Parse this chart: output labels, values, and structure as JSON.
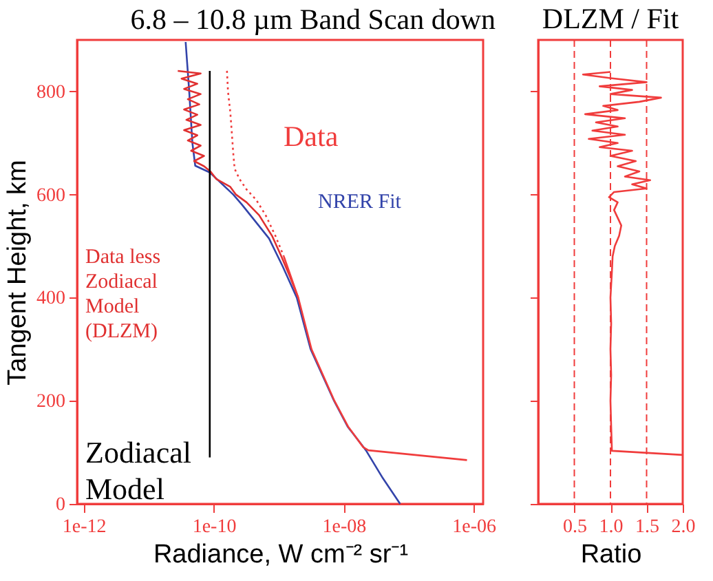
{
  "chart_data": [
    {
      "type": "line",
      "title": "6.8 – 10.8 µm Band  Scan down",
      "xlabel": "Radiance, W cm⁻² sr⁻¹",
      "ylabel": "Tangent Height, km",
      "log": "x",
      "xlim": [
        7.9e-13,
        1.4e-06
      ],
      "xticks": [
        {
          "value": 1e-12,
          "label": "1e-12"
        },
        {
          "value": 1e-10,
          "label": "1e-10"
        },
        {
          "value": 1e-08,
          "label": "1e-08"
        },
        {
          "value": 1e-06,
          "label": "1e-06"
        }
      ],
      "ylim": [
        0,
        900
      ],
      "yticks": [
        0,
        200,
        400,
        600,
        800
      ],
      "series": [
        {
          "color": "#f03c3c",
          "line_style": "dotted",
          "x": [
            1.6e-10,
            1.66e-10,
            1.8e-10,
            1.9e-10,
            2e-10,
            2.1e-10,
            2.5e-10,
            3.2e-10,
            4.5e-10,
            6.3e-10,
            8.9e-10,
            1.2e-09
          ],
          "values": [
            840,
            800,
            760,
            720,
            680,
            650,
            630,
            610,
            590,
            560,
            520,
            480
          ]
        },
        {
          "color": "#3344aa",
          "x": [
            3.7e-11,
            4.2e-11,
            4.7e-11,
            5.2e-11,
            8.7e-11,
            2e-10,
            2.7e-10,
            7.1e-10,
            1.15e-09,
            1.9e-09,
            3.1e-09,
            7.1e-09,
            1.15e-08,
            2.2e-08,
            4e-08,
            7.4e-08
          ],
          "values": [
            896,
            800,
            700,
            656,
            643,
            600,
            581,
            515,
            461,
            400,
            300,
            200,
            150,
            104,
            50,
            0
          ]
        },
        {
          "color": "#e03030",
          "x": [
            2.8e-11,
            6.3e-11,
            3.2e-11,
            5.6e-11,
            3.5e-11,
            6.3e-11,
            4e-11,
            6e-11,
            3.5e-11,
            5.6e-11,
            3.8e-11,
            6.3e-11,
            3.5e-11,
            5.6e-11,
            4e-11,
            6.3e-11,
            4.5e-11,
            7.1e-11,
            5e-11,
            7.1e-11,
            8.9e-11,
            1.1e-10,
            1.8e-10,
            2.2e-10,
            3.2e-10,
            5e-10,
            7.9e-10,
            1.1e-09,
            1.5e-09,
            2e-09
          ],
          "values": [
            840,
            835,
            825,
            815,
            805,
            795,
            785,
            775,
            765,
            755,
            745,
            735,
            725,
            715,
            705,
            695,
            685,
            675,
            665,
            655,
            645,
            630,
            615,
            600,
            585,
            560,
            520,
            480,
            440,
            400
          ]
        },
        {
          "color": "#000000",
          "x": [
            8.7e-11,
            8.7e-11
          ],
          "values": [
            840,
            90
          ]
        },
        {
          "color": "#f03c3c",
          "x": [
            1.2e-09,
            2e-09,
            3.2e-09,
            7.2e-09,
            1.17e-08,
            2e-08,
            2.4e-08,
            7.9e-07
          ],
          "values": [
            480,
            400,
            300,
            200,
            150,
            110,
            104,
            85
          ]
        }
      ],
      "annotations": [
        "Data",
        "NRER Fit",
        "Data less\nZodiacal\nModel\n(DLZM)",
        "Zodiacal\nModel"
      ]
    },
    {
      "type": "line",
      "title": "DLZM / Fit",
      "xlabel": "Ratio",
      "tick_labels": "x",
      "xlim": [
        0,
        2
      ],
      "xticks": [
        {
          "value": 0.5,
          "label": "0.5"
        },
        {
          "value": 1,
          "label": "1.0"
        },
        {
          "value": 1.5,
          "label": "1.5"
        },
        {
          "value": 2,
          "label": "2.0"
        }
      ],
      "ylim": [
        0,
        900
      ],
      "yticks": [
        0,
        200,
        400,
        600,
        800
      ],
      "ref_lines": [
        {
          "axis": "x",
          "value": 0.5,
          "color": "#f03c3c",
          "line_style": "dashed"
        },
        {
          "axis": "x",
          "value": 1,
          "color": "#f03c3c",
          "line_style": "dashed"
        },
        {
          "axis": "x",
          "value": 1.5,
          "color": "#f03c3c",
          "line_style": "dashed"
        }
      ],
      "series": [
        {
          "color": "#f03c3c",
          "x": [
            2.0,
            1.02,
            1.01,
            1.0,
            1.01,
            1.0,
            1.01,
            1.0,
            1.02,
            1.03,
            1.06,
            1.12,
            1.15,
            1.1,
            1.05,
            1.1,
            0.98,
            1.05,
            1.5,
            1.3,
            1.55,
            1.2,
            1.4,
            1.1,
            1.35,
            1.0,
            1.3,
            0.85,
            1.1,
            0.7,
            1.2,
            0.75,
            1.1,
            0.8,
            1.2,
            0.65,
            1.1,
            0.9,
            1.4,
            1.7,
            1.0,
            1.3,
            0.85,
            1.5,
            1.0,
            0.62,
            1.0
          ],
          "values": [
            95,
            103,
            150,
            200,
            250,
            300,
            350,
            400,
            450,
            480,
            500,
            520,
            540,
            555,
            570,
            585,
            595,
            605,
            612,
            620,
            628,
            635,
            645,
            655,
            665,
            675,
            685,
            692,
            700,
            708,
            716,
            724,
            732,
            740,
            748,
            756,
            764,
            772,
            780,
            788,
            795,
            803,
            810,
            818,
            826,
            833,
            838
          ]
        }
      ]
    }
  ]
}
